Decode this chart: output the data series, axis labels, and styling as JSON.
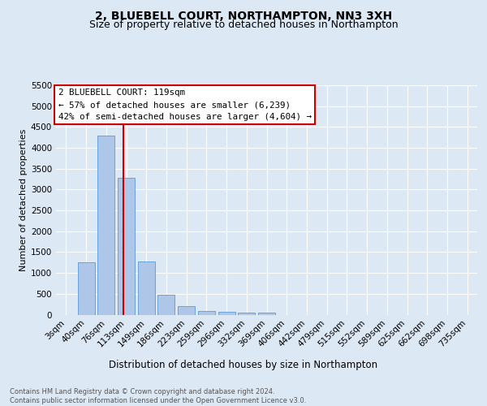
{
  "title1": "2, BLUEBELL COURT, NORTHAMPTON, NN3 3XH",
  "title2": "Size of property relative to detached houses in Northampton",
  "xlabel": "Distribution of detached houses by size in Northampton",
  "ylabel": "Number of detached properties",
  "footnote": "Contains HM Land Registry data © Crown copyright and database right 2024.\nContains public sector information licensed under the Open Government Licence v3.0.",
  "bar_labels": [
    "3sqm",
    "40sqm",
    "76sqm",
    "113sqm",
    "149sqm",
    "186sqm",
    "223sqm",
    "259sqm",
    "296sqm",
    "332sqm",
    "369sqm",
    "406sqm",
    "442sqm",
    "479sqm",
    "515sqm",
    "552sqm",
    "589sqm",
    "625sqm",
    "662sqm",
    "698sqm",
    "735sqm"
  ],
  "bar_values": [
    0,
    1260,
    4300,
    3280,
    1270,
    480,
    195,
    90,
    75,
    50,
    45,
    0,
    0,
    0,
    0,
    0,
    0,
    0,
    0,
    0,
    0
  ],
  "bar_color": "#aec6e8",
  "bar_edge_color": "#5b9bd5",
  "vline_x": 2.85,
  "vline_color": "#cc0000",
  "annotation_text": "2 BLUEBELL COURT: 119sqm\n← 57% of detached houses are smaller (6,239)\n42% of semi-detached houses are larger (4,604) →",
  "annotation_box_color": "#ffffff",
  "annotation_box_edge": "#cc0000",
  "ylim": [
    0,
    5500
  ],
  "yticks": [
    0,
    500,
    1000,
    1500,
    2000,
    2500,
    3000,
    3500,
    4000,
    4500,
    5000,
    5500
  ],
  "bg_color": "#dde8f5",
  "plot_bg_color": "#dde8f5",
  "title1_fontsize": 10,
  "title2_fontsize": 9,
  "grid_color": "#ffffff",
  "label_fontsize": 7.5,
  "ylabel_fontsize": 8,
  "xlabel_fontsize": 8.5
}
